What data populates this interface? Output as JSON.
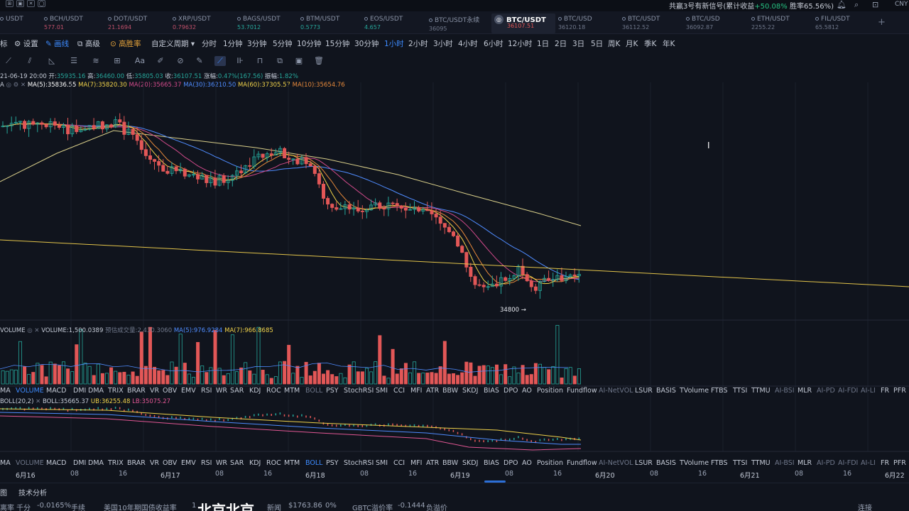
{
  "topbar": {
    "icons": [
      "⊞",
      "▣",
      "✕",
      "◯"
    ],
    "signal_prefix": "共赢3号有新信号(累计收益",
    "signal_gain": "+50.08%",
    "signal_suffix": " 胜率65.56%)",
    "currency": "CNY"
  },
  "tickers": [
    {
      "name": "USDT",
      "price": "",
      "state": "neutral"
    },
    {
      "name": "BCH/USDT",
      "price": "577.01",
      "state": "down"
    },
    {
      "name": "DOT/USDT",
      "price": "21.1694",
      "state": "down"
    },
    {
      "name": "XRP/USDT",
      "price": "0.79632",
      "state": "down"
    },
    {
      "name": "BAGS/USDT",
      "price": "53.7012",
      "state": "up"
    },
    {
      "name": "BTM/USDT",
      "price": "0.5773",
      "state": "up"
    },
    {
      "name": "EOS/USDT",
      "price": "4.657",
      "state": "up"
    },
    {
      "name": "BTC/USDT永续",
      "price": "36095",
      "state": "neutral"
    },
    {
      "name": "BTC/USDT",
      "price": "36107.51",
      "state": "active"
    },
    {
      "name": "BTC/USD",
      "price": "36120.18",
      "state": "neutral"
    },
    {
      "name": "BTC/USDT",
      "price": "36112.52",
      "state": "neutral"
    },
    {
      "name": "BTC/USD",
      "price": "36092.87",
      "state": "neutral"
    },
    {
      "name": "ETH/USDT",
      "price": "2255.22",
      "state": "neutral"
    },
    {
      "name": "FIL/USDT",
      "price": "65.5812",
      "state": "neutral"
    }
  ],
  "toolbar": {
    "items": [
      "标",
      "⚙ 设置",
      "✎ 画线",
      "⧉ 高级",
      "⊙ 高胜率",
      "自定义周期 ▾",
      "分时",
      "1分钟",
      "3分钟",
      "5分钟",
      "10分钟",
      "15分钟",
      "30分钟",
      "1小时",
      "2小时",
      "3小时",
      "4小时",
      "6小时",
      "12小时",
      "1日",
      "2日",
      "3日",
      "5日",
      "周K",
      "月K",
      "季K",
      "年K"
    ],
    "active": "1小时"
  },
  "drawing_tools": [
    "line",
    "parallel",
    "fib",
    "channel",
    "wave",
    "text",
    "brush",
    "magnet",
    "pen",
    "ruler",
    "measure",
    "lock",
    "copy",
    "screenshot",
    "trash"
  ],
  "ohlc": {
    "date": "21-06-19 20:00",
    "open_label": "开:",
    "open": "35935.16",
    "high_label": "高:",
    "high": "36460.00",
    "low_label": "低:",
    "low": "35805.03",
    "close_label": "收:",
    "close": "36107.51",
    "change_label": "涨幅:",
    "change": "0.47%(167.56)",
    "amp_label": "振幅:",
    "amp": "1.82%"
  },
  "ma_legend": {
    "prefix": "A",
    "ma5": "MA(5):35836.55",
    "ma7": "MA(7):35820.30",
    "ma20": "MA(20):35665.37",
    "ma30": "MA(30):36210.50",
    "ma60": "MA(60):37305.57",
    "ma10": "MA(10):35654.76"
  },
  "low_marker": "34800 →",
  "volume_legend": {
    "title": "VOLUME",
    "volume": "VOLUME:1,500.0389",
    "predicted": "预估成交量:2,430.3060",
    "ma5": "MA(5):976.9284",
    "ma7": "MA(7):966.8685"
  },
  "indicators": [
    "MA",
    "VOLUME",
    "MACD",
    "DMI",
    "DMA",
    "TRIX",
    "BRAR",
    "VR",
    "OBV",
    "EMV",
    "RSI",
    "WR",
    "SAR",
    "KDJ",
    "ROC",
    "MTM",
    "BOLL",
    "PSY",
    "StochRSI",
    "SMI",
    "CCI",
    "MFI",
    "ATR",
    "BBW",
    "SKDJ",
    "BIAS",
    "DPO",
    "AO",
    "Position",
    "Fundflow",
    "AI-NetVOL",
    "LSUR",
    "BASIS",
    "TVolume",
    "FTBS",
    "TTSI",
    "TTMU",
    "AI-BSI",
    "MLR",
    "AI-PD",
    "AI-FDI",
    "AI-LI",
    "FR",
    "PFR"
  ],
  "indicators_active_row1": "VOLUME",
  "indicators_active_row2": "BOLL",
  "boll_legend": {
    "title": "BOLL(20,2)",
    "boll": "BOLL:35665.37",
    "ub": "UB:36255.48",
    "lb": "LB:35075.27"
  },
  "dates": [
    "6月16",
    "08",
    "16",
    "6月17",
    "08",
    "16",
    "6月18",
    "08",
    "16",
    "6月19",
    "08",
    "16",
    "6月20",
    "08",
    "16",
    "6月21",
    "08",
    "16",
    "6月22"
  ],
  "bottom": {
    "tab1": "图",
    "tab2": "技术分析",
    "ticker_items": [
      "离率 千分",
      "-0.0165%",
      "手续",
      "美国10年期国债收益率",
      "1",
      "北京北京",
      "新闻",
      "$1763.86",
      "0%",
      "GBTC溢价率",
      "-0.1444",
      "负溢价",
      "连接"
    ]
  },
  "colors": {
    "up": "#26a69a",
    "down": "#e25757",
    "accent": "#3d8bff",
    "trendline": "#e3c44a"
  }
}
